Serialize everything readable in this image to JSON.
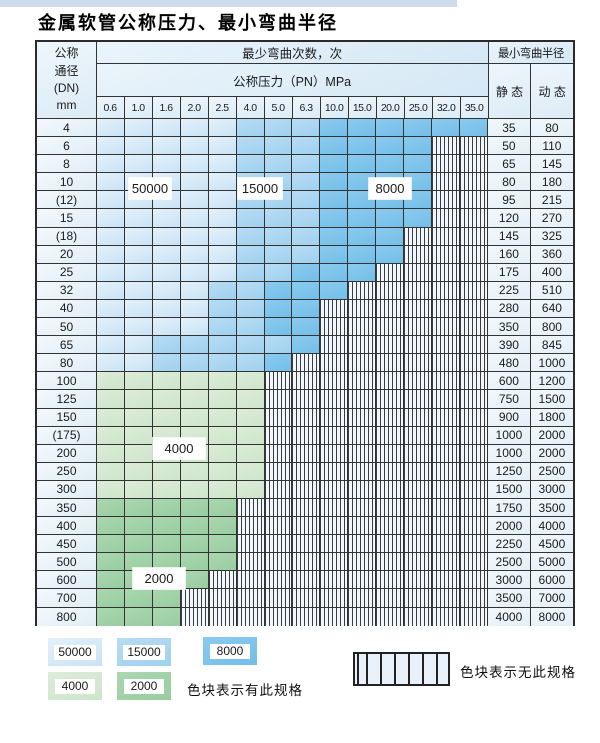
{
  "page": {
    "title": "金属软管公称压力、最小弯曲半径"
  },
  "table": {
    "corner": {
      "line1": "公称",
      "line2": "通径",
      "line3": "(DN)",
      "line4": "mm"
    },
    "bend_times_header": "最少弯曲次数，次",
    "pressure_header": "公称压力（PN）MPa",
    "radius_header": "最小弯曲半径",
    "static_header": "静 态",
    "dynamic_header": "动 态",
    "pressure_columns": [
      "0.6",
      "1.0",
      "1.6",
      "2.0",
      "2.5",
      "4.0",
      "5.0",
      "6.3",
      "10.0",
      "15.0",
      "20.0",
      "25.0",
      "32.0",
      "35.0"
    ],
    "rows": [
      {
        "dn": "4",
        "static": "35",
        "dynamic": "80",
        "bands": [
          [
            0,
            4,
            "c50000"
          ],
          [
            5,
            7,
            "c15000"
          ],
          [
            8,
            13,
            "c8000"
          ]
        ]
      },
      {
        "dn": "6",
        "static": "50",
        "dynamic": "110",
        "bands": [
          [
            0,
            4,
            "c50000"
          ],
          [
            5,
            7,
            "c15000"
          ],
          [
            8,
            11,
            "c8000"
          ]
        ]
      },
      {
        "dn": "8",
        "static": "65",
        "dynamic": "145",
        "bands": [
          [
            0,
            4,
            "c50000"
          ],
          [
            5,
            7,
            "c15000"
          ],
          [
            8,
            11,
            "c8000"
          ]
        ]
      },
      {
        "dn": "10",
        "static": "80",
        "dynamic": "180",
        "bands": [
          [
            0,
            4,
            "c50000"
          ],
          [
            5,
            7,
            "c15000"
          ],
          [
            8,
            11,
            "c8000"
          ]
        ]
      },
      {
        "dn": "(12)",
        "static": "95",
        "dynamic": "215",
        "bands": [
          [
            0,
            4,
            "c50000"
          ],
          [
            5,
            7,
            "c15000"
          ],
          [
            8,
            11,
            "c8000"
          ]
        ]
      },
      {
        "dn": "15",
        "static": "120",
        "dynamic": "270",
        "bands": [
          [
            0,
            4,
            "c50000"
          ],
          [
            5,
            7,
            "c15000"
          ],
          [
            8,
            11,
            "c8000"
          ]
        ]
      },
      {
        "dn": "(18)",
        "static": "145",
        "dynamic": "325",
        "bands": [
          [
            0,
            4,
            "c50000"
          ],
          [
            5,
            7,
            "c15000"
          ],
          [
            8,
            10,
            "c8000"
          ]
        ]
      },
      {
        "dn": "20",
        "static": "160",
        "dynamic": "360",
        "bands": [
          [
            0,
            4,
            "c50000"
          ],
          [
            5,
            7,
            "c15000"
          ],
          [
            8,
            10,
            "c8000"
          ]
        ]
      },
      {
        "dn": "25",
        "static": "175",
        "dynamic": "400",
        "bands": [
          [
            0,
            4,
            "c50000"
          ],
          [
            5,
            6,
            "c15000"
          ],
          [
            7,
            9,
            "c8000"
          ]
        ]
      },
      {
        "dn": "32",
        "static": "225",
        "dynamic": "510",
        "bands": [
          [
            0,
            3,
            "c50000"
          ],
          [
            4,
            5,
            "c15000"
          ],
          [
            6,
            8,
            "c8000"
          ]
        ]
      },
      {
        "dn": "40",
        "static": "280",
        "dynamic": "640",
        "bands": [
          [
            0,
            3,
            "c50000"
          ],
          [
            4,
            5,
            "c15000"
          ],
          [
            6,
            7,
            "c8000"
          ]
        ]
      },
      {
        "dn": "50",
        "static": "350",
        "dynamic": "800",
        "bands": [
          [
            0,
            3,
            "c50000"
          ],
          [
            4,
            5,
            "c15000"
          ],
          [
            6,
            7,
            "c8000"
          ]
        ]
      },
      {
        "dn": "65",
        "static": "390",
        "dynamic": "845",
        "bands": [
          [
            0,
            1,
            "c50000"
          ],
          [
            2,
            6,
            "c15000"
          ],
          [
            7,
            7,
            "c8000"
          ]
        ]
      },
      {
        "dn": "80",
        "static": "480",
        "dynamic": "1000",
        "bands": [
          [
            0,
            1,
            "c50000"
          ],
          [
            2,
            5,
            "c15000"
          ],
          [
            6,
            6,
            "c8000"
          ]
        ]
      },
      {
        "dn": "100",
        "static": "600",
        "dynamic": "1200",
        "bands": [
          [
            0,
            5,
            "c4000"
          ]
        ]
      },
      {
        "dn": "125",
        "static": "750",
        "dynamic": "1500",
        "bands": [
          [
            0,
            5,
            "c4000"
          ]
        ]
      },
      {
        "dn": "150",
        "static": "900",
        "dynamic": "1800",
        "bands": [
          [
            0,
            5,
            "c4000"
          ]
        ]
      },
      {
        "dn": "(175)",
        "static": "1000",
        "dynamic": "2000",
        "bands": [
          [
            0,
            5,
            "c4000"
          ]
        ]
      },
      {
        "dn": "200",
        "static": "1000",
        "dynamic": "2000",
        "bands": [
          [
            0,
            5,
            "c4000"
          ]
        ]
      },
      {
        "dn": "250",
        "static": "1250",
        "dynamic": "2500",
        "bands": [
          [
            0,
            5,
            "c4000"
          ]
        ]
      },
      {
        "dn": "300",
        "static": "1500",
        "dynamic": "3000",
        "bands": [
          [
            0,
            5,
            "c4000"
          ]
        ]
      },
      {
        "dn": "350",
        "static": "1750",
        "dynamic": "3500",
        "bands": [
          [
            0,
            4,
            "c2000"
          ]
        ]
      },
      {
        "dn": "400",
        "static": "2000",
        "dynamic": "4000",
        "bands": [
          [
            0,
            4,
            "c2000"
          ]
        ]
      },
      {
        "dn": "450",
        "static": "2250",
        "dynamic": "4500",
        "bands": [
          [
            0,
            4,
            "c2000"
          ]
        ]
      },
      {
        "dn": "500",
        "static": "2500",
        "dynamic": "5000",
        "bands": [
          [
            0,
            4,
            "c2000"
          ]
        ]
      },
      {
        "dn": "600",
        "static": "3000",
        "dynamic": "6000",
        "bands": [
          [
            0,
            3,
            "c2000"
          ]
        ]
      },
      {
        "dn": "700",
        "static": "3500",
        "dynamic": "7000",
        "bands": [
          [
            0,
            2,
            "c2000"
          ]
        ]
      },
      {
        "dn": "800",
        "static": "4000",
        "dynamic": "8000",
        "bands": [
          [
            0,
            2,
            "c2000"
          ]
        ]
      }
    ],
    "markers": [
      {
        "text": "50000"
      },
      {
        "text": "15000"
      },
      {
        "text": "8000"
      },
      {
        "text": "4000"
      },
      {
        "text": "2000"
      }
    ]
  },
  "legend": {
    "items": [
      {
        "value": "50000",
        "shade": "c50000"
      },
      {
        "value": "15000",
        "shade": "c15000"
      },
      {
        "value": "8000",
        "shade": "c8000"
      },
      {
        "value": "4000",
        "shade": "c4000"
      },
      {
        "value": "2000",
        "shade": "c2000"
      }
    ],
    "available_text": "色块表示有此规格",
    "unavailable_text": "色块表示无此规格"
  },
  "colors": {
    "c50000": "#c9e3f6",
    "c15000": "#9fd1ef",
    "c8000": "#72bfe9",
    "c4000": "#cde5cb",
    "c2000": "#98cda0",
    "grid": "#333333"
  }
}
